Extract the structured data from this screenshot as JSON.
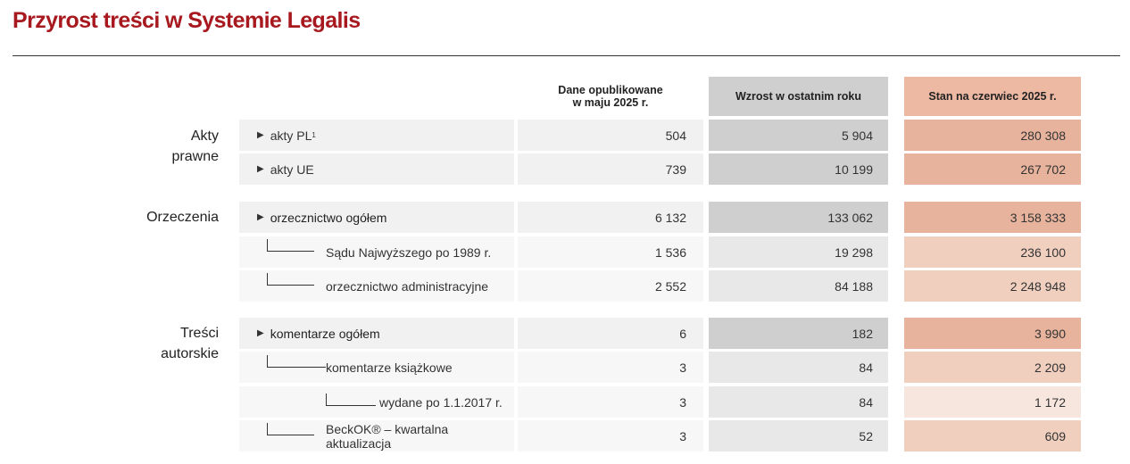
{
  "title": "Przyrost treści w Systemie Legalis",
  "headers": {
    "published": "Dane opublikowane\nw maju 2025 r.",
    "growth": "Wzrost w ostatnim roku",
    "state": "Stan na czerwiec 2025 r."
  },
  "categories": {
    "acts": "Akty\nprawne",
    "rulings": "Orzeczenia",
    "authored": "Treści\nautorskie"
  },
  "rows": [
    {
      "label": "akty PL",
      "sup": "1",
      "published": "504",
      "growth": "5 904",
      "state": "280 308"
    },
    {
      "label": "akty UE",
      "published": "739",
      "growth": "10 199",
      "state": "267 702"
    },
    {
      "label": "orzecznictwo ogółem",
      "published": "6 132",
      "growth": "133 062",
      "state": "3 158 333"
    },
    {
      "label": "Sądu Najwyższego po 1989 r.",
      "published": "1 536",
      "growth": "19 298",
      "state": "236 100"
    },
    {
      "label": "orzecznictwo administracyjne",
      "published": "2 552",
      "growth": "84 188",
      "state": "2 248 948"
    },
    {
      "label": "komentarze ogółem",
      "published": "6",
      "growth": "182",
      "state": "3 990"
    },
    {
      "label": "komentarze książkowe",
      "published": "3",
      "growth": "84",
      "state": "2 209"
    },
    {
      "label": "wydane po 1.1.2017 r.",
      "published": "3",
      "growth": "84",
      "state": "1 172"
    },
    {
      "label": "BeckOK® – kwartalna aktualizacja",
      "published": "3",
      "growth": "52",
      "state": "609"
    }
  ],
  "colors": {
    "title": "#a8191f",
    "growth_dark": "#cfcfcf",
    "growth_light": "#e8e8e8",
    "state_dark": "#e8b39d",
    "state_mid": "#f0cfbf",
    "state_light": "#f7e6dd"
  }
}
